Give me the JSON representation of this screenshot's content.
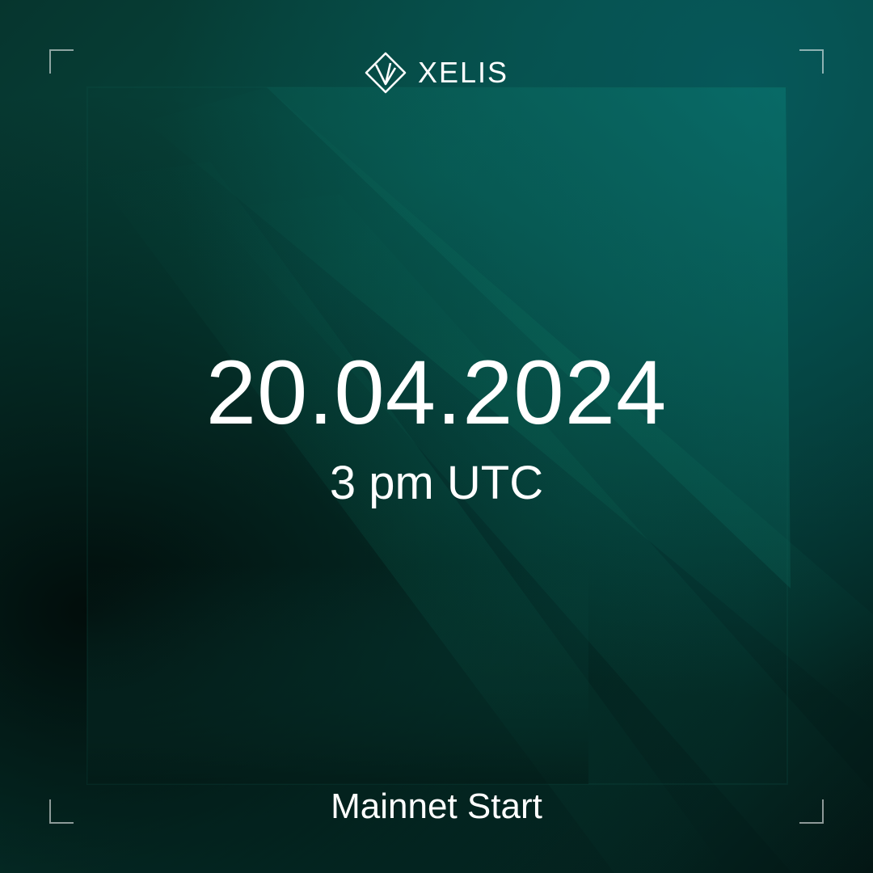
{
  "brand": {
    "name": "XELIS",
    "icon": "xelis-diamond-logo-icon"
  },
  "event": {
    "date": "20.04.2024",
    "time": "3 pm UTC",
    "title": "Mainnet Start"
  },
  "colors": {
    "text": "#ffffff",
    "bg_dark": "#031614",
    "bg_teal": "#06585a",
    "accent_green": "#064a40"
  }
}
